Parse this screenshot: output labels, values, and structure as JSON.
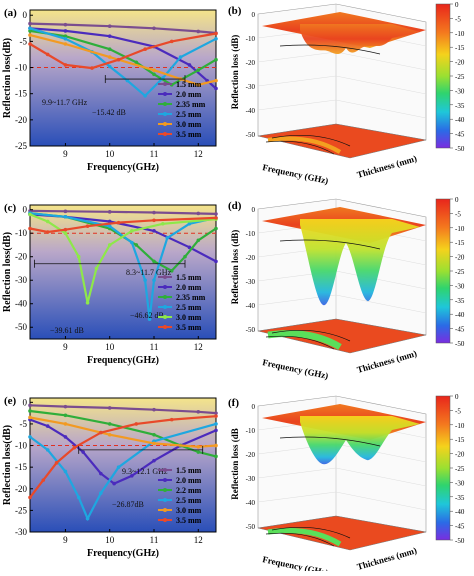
{
  "panels": [
    {
      "id": "a",
      "label": "(a)",
      "xlabel": "Frequency(GHz)",
      "ylabel": "Reflection loss(dB)",
      "xticks": [
        9,
        10,
        11,
        12
      ],
      "yticks": [
        0,
        -5,
        -10,
        -15,
        -20,
        -25
      ],
      "legend": [
        "1.5 mm",
        "2.0 mm",
        "2.35 mm",
        "2.5 mm",
        "3.0 mm",
        "3.5 mm"
      ],
      "annotations": {
        "band": "9.9~11.7 GHz",
        "min": "−15.42 dB"
      },
      "chart_data": {
        "type": "line",
        "xlim": [
          8.2,
          12.4
        ],
        "ylim": [
          -25,
          1
        ],
        "threshold": -10,
        "series": [
          {
            "name": "1.5 mm",
            "color": "#7a4d8f",
            "x": [
              8.2,
              9,
              10,
              11,
              12,
              12.4
            ],
            "y": [
              -1.6,
              -1.8,
              -2.1,
              -2.5,
              -3.1,
              -3.4
            ]
          },
          {
            "name": "2.0 mm",
            "color": "#4b2bbd",
            "x": [
              8.2,
              9,
              10,
              11,
              11.8,
              12.2,
              12.4
            ],
            "y": [
              -2.5,
              -3.0,
              -4.0,
              -6.0,
              -9.5,
              -12.5,
              -14.0
            ]
          },
          {
            "name": "2.35 mm",
            "color": "#2fae3a",
            "x": [
              8.2,
              9,
              10,
              10.6,
              11,
              11.4,
              12,
              12.4
            ],
            "y": [
              -3.0,
              -4.0,
              -6.5,
              -9.0,
              -11.3,
              -13.3,
              -10.5,
              -8.5
            ]
          },
          {
            "name": "2.5 mm",
            "color": "#1ea7e0",
            "x": [
              8.2,
              9,
              9.6,
              10,
              10.4,
              10.8,
              11.2,
              11.6,
              12.4
            ],
            "y": [
              -2.5,
              -4.5,
              -7.0,
              -9.8,
              -12.5,
              -15.4,
              -12.0,
              -8.0,
              -4.5
            ]
          },
          {
            "name": "3.0 mm",
            "color": "#f29a22",
            "x": [
              8.2,
              9,
              10,
              11,
              11.6,
              12,
              12.4
            ],
            "y": [
              -3.8,
              -5.5,
              -8.0,
              -10.5,
              -12.2,
              -13.3,
              -12.5
            ]
          },
          {
            "name": "3.5 mm",
            "color": "#e8492a",
            "x": [
              8.2,
              8.6,
              9,
              9.6,
              10.2,
              10.8,
              11.4,
              12.4
            ],
            "y": [
              -5.5,
              -7.5,
              -9.5,
              -10.1,
              -8.5,
              -6.5,
              -5.0,
              -3.5
            ]
          }
        ]
      }
    },
    {
      "id": "c",
      "label": "(c)",
      "xlabel": "Frequency(GHz)",
      "ylabel": "Reflection loss(dB)",
      "xticks": [
        9,
        10,
        11,
        12
      ],
      "yticks": [
        0,
        -10,
        -20,
        -30,
        -40,
        -50
      ],
      "legend": [
        "1.5 mm",
        "2.0 mm",
        "2.35 mm",
        "2.5 mm",
        "3.0 mm",
        "3.5 mm"
      ],
      "annotations": {
        "band": "8.3~11.7 GHz",
        "min1": "−39.61 dB",
        "min2": "−46.62 dB"
      },
      "chart_data": {
        "type": "line",
        "xlim": [
          8.2,
          12.4
        ],
        "ylim": [
          -55,
          2
        ],
        "threshold": -10,
        "series": [
          {
            "name": "1.5 mm",
            "color": "#7a4d8f",
            "x": [
              8.2,
              9,
              10,
              11,
              12,
              12.4
            ],
            "y": [
              -0.5,
              -0.7,
              -0.9,
              -1.2,
              -1.6,
              -1.8
            ]
          },
          {
            "name": "2.0 mm",
            "color": "#4b2bbd",
            "x": [
              8.2,
              9,
              10,
              11,
              11.8,
              12.4
            ],
            "y": [
              -2.0,
              -3.0,
              -5.0,
              -9.0,
              -16.0,
              -22.0
            ]
          },
          {
            "name": "2.35 mm",
            "color": "#2fae3a",
            "x": [
              8.2,
              9,
              10,
              10.6,
              11,
              11.4,
              11.7,
              12.0,
              12.4
            ],
            "y": [
              -1.5,
              -3.0,
              -8.0,
              -15.0,
              -22.0,
              -26.0,
              -20.0,
              -13.0,
              -8.0
            ]
          },
          {
            "name": "2.5 mm",
            "color": "#1ea7e0",
            "x": [
              8.2,
              9,
              10,
              10.5,
              10.8,
              10.9,
              11.0,
              11.3,
              11.8,
              12.4
            ],
            "y": [
              -1.5,
              -3.0,
              -7.0,
              -14.0,
              -30.0,
              -46.6,
              -30.0,
              -12.0,
              -6.0,
              -3.5
            ]
          },
          {
            "name": "3.0 mm",
            "color": "#8ee84a",
            "x": [
              8.2,
              8.6,
              9,
              9.3,
              9.5,
              9.7,
              10.0,
              10.5,
              11.2,
              12.4
            ],
            "y": [
              -2.0,
              -5.0,
              -10.0,
              -20.0,
              -39.6,
              -25.0,
              -15.0,
              -9.0,
              -6.0,
              -4.0
            ]
          },
          {
            "name": "3.5 mm",
            "color": "#e8492a",
            "x": [
              8.2,
              8.6,
              9,
              9.5,
              10.2,
              11,
              12.4
            ],
            "y": [
              -8.0,
              -9.5,
              -8.5,
              -7.0,
              -5.5,
              -4.5,
              -3.5
            ]
          }
        ]
      }
    },
    {
      "id": "e",
      "label": "(e)",
      "xlabel": "Frequency(GHz)",
      "ylabel": "Reflection loss(dB)",
      "xticks": [
        9,
        10,
        11,
        12
      ],
      "yticks": [
        0,
        -5,
        -10,
        -15,
        -20,
        -25,
        -30
      ],
      "legend": [
        "1.5 mm",
        "2.0 mm",
        "2.2 mm",
        "2.5 mm",
        "3.0 mm",
        "3.5 mm"
      ],
      "annotations": {
        "band": "9.3~12.1 GHz",
        "min": "−26.87dB"
      },
      "chart_data": {
        "type": "line",
        "xlim": [
          8.2,
          12.4
        ],
        "ylim": [
          -30,
          1
        ],
        "threshold": -10,
        "series": [
          {
            "name": "1.5 mm",
            "color": "#7a4d8f",
            "x": [
              8.2,
              9,
              10,
              11,
              12,
              12.4
            ],
            "y": [
              -0.7,
              -1.0,
              -1.3,
              -1.7,
              -2.2,
              -2.5
            ]
          },
          {
            "name": "2.0 mm",
            "color": "#4b2bbd",
            "x": [
              8.2,
              8.6,
              9,
              9.4,
              9.8,
              10.1,
              10.5,
              11.0,
              11.6,
              12.4
            ],
            "y": [
              -4.0,
              -5.5,
              -8.0,
              -11.5,
              -16.5,
              -18.8,
              -17.0,
              -13.5,
              -10.0,
              -6.5
            ]
          },
          {
            "name": "2.2 mm",
            "color": "#2fae3a",
            "x": [
              8.2,
              9,
              10,
              11,
              11.6,
              12,
              12.4
            ],
            "y": [
              -2.0,
              -3.0,
              -5.0,
              -7.5,
              -10.0,
              -11.5,
              -12.5
            ]
          },
          {
            "name": "2.5 mm",
            "color": "#1ea7e0",
            "x": [
              8.2,
              8.6,
              9,
              9.3,
              9.5,
              9.8,
              10.2,
              11,
              12.4
            ],
            "y": [
              -8.0,
              -11.0,
              -16.0,
              -22.0,
              -26.9,
              -21.0,
              -15.0,
              -9.0,
              -5.0
            ]
          },
          {
            "name": "3.0 mm",
            "color": "#f29a22",
            "x": [
              8.2,
              9,
              10,
              11,
              12,
              12.4
            ],
            "y": [
              -3.5,
              -5.0,
              -7.5,
              -9.5,
              -10.3,
              -10.0
            ]
          },
          {
            "name": "3.5 mm",
            "color": "#e8492a",
            "x": [
              8.2,
              8.5,
              8.8,
              9.2,
              9.8,
              10.6,
              11.4,
              12.4
            ],
            "y": [
              -22.0,
              -18.0,
              -14.0,
              -10.5,
              -7.0,
              -5.0,
              -4.0,
              -3.2
            ]
          }
        ]
      }
    }
  ],
  "surfaces": [
    {
      "id": "b",
      "label": "(b)",
      "zlabel": "Reflection loss (dB)",
      "xlabel": "Frequency (GHz)",
      "ylabel": "Thickness (mm)",
      "zticks": [
        0,
        -10,
        -20,
        -30,
        -40,
        -50
      ],
      "colorbar_ticks": [
        "0",
        "-5",
        "-10",
        "-15",
        "-20",
        "-25",
        "-30",
        "-35",
        "-40",
        "-45",
        "-50"
      ],
      "depth": 0.32
    },
    {
      "id": "d",
      "label": "(d)",
      "zlabel": "Reflection loss (dB)",
      "xlabel": "Frequency (GHz)",
      "ylabel": "Thickness (mm)",
      "zticks": [
        0,
        -10,
        -20,
        -30,
        -40,
        -50
      ],
      "colorbar_ticks": [
        "0",
        "-5",
        "-10",
        "-15",
        "-20",
        "-25",
        "-30",
        "-35",
        "-40",
        "-45",
        "-50"
      ],
      "depth": 0.95
    },
    {
      "id": "f",
      "label": "(f)",
      "zlabel": "Reflection loss (dB",
      "xlabel": "Frequency (GHz)",
      "ylabel": "Thickness (mm)",
      "zticks": [
        0,
        -10,
        -20,
        -30,
        -40,
        -50
      ],
      "colorbar_ticks": [
        "0",
        "-5",
        "-10",
        "-15",
        "-20",
        "-25",
        "-30",
        "-35",
        "-40",
        "-45",
        "-50"
      ],
      "depth": 0.55
    }
  ]
}
